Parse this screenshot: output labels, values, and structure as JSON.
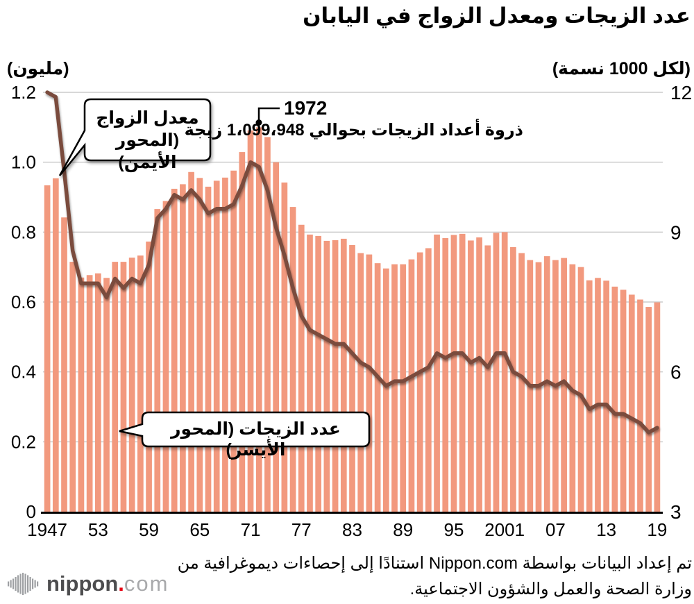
{
  "title": "عدد الزيجات ومعدل الزواج في اليابان",
  "axes": {
    "left_unit": "(مليون)",
    "right_unit": "(لكل 1000 نسمة)"
  },
  "annotation": {
    "year": "1972",
    "text_before": "ذروة أعداد الزيجات بحوالي",
    "text_value": "1،099،948",
    "text_after": "زيجة"
  },
  "callouts": {
    "rate_line1": "معدل الزواج",
    "rate_line2": "(المحور الأيمن)",
    "count": "عدد الزيجات (المحور الأيسر)"
  },
  "footer": {
    "line1": "تم إعداد البيانات بواسطة Nippon.com استنادًا إلى إحصاءات ديموغرافية من",
    "line2": "وزارة الصحة والعمل والشؤون الاجتماعية."
  },
  "logo": {
    "name": "nippon",
    "dot": ".",
    "tld": "com"
  },
  "colors": {
    "bar": "#F2997E",
    "line": "#7A4B3C",
    "grid": "#CCCCCC",
    "axis": "#000000",
    "logo_dark": "#4C4C4E",
    "logo_light": "#A8A9AB",
    "logo_red": "#E60012",
    "logo_icon": "#9EA0A3"
  },
  "chart_data": {
    "type": "bar",
    "title": "عدد الزيجات ومعدل الزواج في اليابان",
    "xlabel": "",
    "ylabel_left": "(مليون)",
    "ylabel_right": "(لكل 1000 نسمة)",
    "grid": true,
    "left_ylim": [
      0,
      1.2
    ],
    "right_ylim": [
      3,
      12
    ],
    "x": [
      1947,
      1948,
      1949,
      1950,
      1951,
      1952,
      1953,
      1954,
      1955,
      1956,
      1957,
      1958,
      1959,
      1960,
      1961,
      1962,
      1963,
      1964,
      1965,
      1966,
      1967,
      1968,
      1969,
      1970,
      1971,
      1972,
      1973,
      1974,
      1975,
      1976,
      1977,
      1978,
      1979,
      1980,
      1981,
      1982,
      1983,
      1984,
      1985,
      1986,
      1987,
      1988,
      1989,
      1990,
      1991,
      1992,
      1993,
      1994,
      1995,
      1996,
      1997,
      1998,
      1999,
      2000,
      2001,
      2002,
      2003,
      2004,
      2005,
      2006,
      2007,
      2008,
      2009,
      2010,
      2011,
      2012,
      2013,
      2014,
      2015,
      2016,
      2017,
      2018,
      2019
    ],
    "series": [
      {
        "name": "عدد الزيجات (المحور الأيسر)",
        "type": "bar",
        "axis": "left",
        "unit": "مليون",
        "values": [
          0.934,
          0.954,
          0.842,
          0.715,
          0.67,
          0.677,
          0.682,
          0.669,
          0.715,
          0.715,
          0.727,
          0.733,
          0.773,
          0.866,
          0.889,
          0.924,
          0.937,
          0.972,
          0.955,
          0.93,
          0.947,
          0.956,
          0.976,
          1.029,
          1.091,
          1.1,
          1.072,
          1.0,
          0.942,
          0.872,
          0.821,
          0.793,
          0.789,
          0.775,
          0.777,
          0.781,
          0.763,
          0.74,
          0.736,
          0.711,
          0.696,
          0.708,
          0.708,
          0.722,
          0.742,
          0.754,
          0.793,
          0.783,
          0.792,
          0.795,
          0.776,
          0.785,
          0.762,
          0.798,
          0.8,
          0.757,
          0.74,
          0.72,
          0.714,
          0.731,
          0.72,
          0.726,
          0.708,
          0.7,
          0.662,
          0.669,
          0.661,
          0.644,
          0.635,
          0.621,
          0.607,
          0.586,
          0.599
        ]
      },
      {
        "name": "معدل الزواج (المحور الأيمن)",
        "type": "line",
        "axis": "right",
        "unit": "لكل 1000 نسمة",
        "values": [
          12.0,
          11.9,
          10.3,
          8.6,
          7.9,
          7.9,
          7.9,
          7.6,
          8.0,
          7.8,
          8.0,
          7.9,
          8.3,
          9.3,
          9.5,
          9.8,
          9.7,
          9.9,
          9.7,
          9.4,
          9.5,
          9.5,
          9.6,
          10.0,
          10.5,
          10.4,
          9.9,
          9.1,
          8.5,
          7.8,
          7.2,
          6.9,
          6.8,
          6.7,
          6.6,
          6.6,
          6.4,
          6.2,
          6.1,
          5.9,
          5.7,
          5.8,
          5.8,
          5.9,
          6.0,
          6.1,
          6.4,
          6.3,
          6.4,
          6.4,
          6.2,
          6.3,
          6.1,
          6.4,
          6.4,
          6.0,
          5.9,
          5.7,
          5.7,
          5.8,
          5.7,
          5.8,
          5.6,
          5.5,
          5.2,
          5.3,
          5.3,
          5.1,
          5.1,
          5.0,
          4.9,
          4.7,
          4.8
        ]
      }
    ],
    "peak": {
      "year": 1972,
      "value_million": 1.1
    },
    "left_ticks": [
      [
        "1.2",
        1.2
      ],
      [
        "1.0",
        1.0
      ],
      [
        "0.8",
        0.8
      ],
      [
        "0.6",
        0.6
      ],
      [
        "0.4",
        0.4
      ],
      [
        "0.2",
        0.2
      ],
      [
        "0",
        0
      ]
    ],
    "right_ticks": [
      [
        "12",
        12
      ],
      [
        "9",
        9
      ],
      [
        "6",
        6
      ],
      [
        "3",
        3
      ]
    ],
    "x_ticks": [
      [
        "1947",
        1947
      ],
      [
        "53",
        1953
      ],
      [
        "59",
        1959
      ],
      [
        "65",
        1965
      ],
      [
        "71",
        1971
      ],
      [
        "77",
        1977
      ],
      [
        "83",
        1983
      ],
      [
        "89",
        1989
      ],
      [
        "95",
        1995
      ],
      [
        "2001",
        2001
      ],
      [
        "07",
        2007
      ],
      [
        "13",
        2013
      ],
      [
        "19",
        2019
      ]
    ],
    "legend_position": "callouts-inside-plot"
  }
}
